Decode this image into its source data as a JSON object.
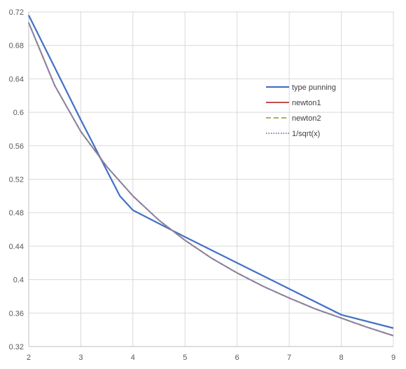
{
  "chart_data": {
    "type": "line",
    "title": "",
    "xlabel": "",
    "ylabel": "",
    "xlim": [
      2,
      9
    ],
    "ylim": [
      0.32,
      0.72
    ],
    "x_ticks": [
      2,
      3,
      4,
      5,
      6,
      7,
      8,
      9
    ],
    "y_ticks": [
      0.32,
      0.36,
      0.4,
      0.44,
      0.48,
      0.52,
      0.56,
      0.6,
      0.64,
      0.68,
      0.72
    ],
    "y_tick_labels": [
      "0.32",
      "0.36",
      "0.4",
      "0.44",
      "0.48",
      "0.52",
      "0.56",
      "0.6",
      "0.64",
      "0.68",
      "0.72"
    ],
    "grid": true,
    "legend_position": "right",
    "series": [
      {
        "name": "type punning",
        "color": "#4472C4",
        "style": "solid",
        "x": [
          2,
          3,
          3.75,
          4,
          5,
          6,
          7,
          8,
          9
        ],
        "y": [
          0.716,
          0.591,
          0.5,
          0.483,
          0.451,
          0.42,
          0.389,
          0.358,
          0.342
        ]
      },
      {
        "name": "newton1",
        "color": "#C0504D",
        "style": "solid",
        "x": [
          2,
          2.5,
          3,
          3.5,
          4,
          4.5,
          5,
          5.5,
          6,
          6.5,
          7,
          7.5,
          8,
          8.5,
          9
        ],
        "y": [
          0.707,
          0.632,
          0.577,
          0.535,
          0.5,
          0.471,
          0.447,
          0.426,
          0.408,
          0.392,
          0.378,
          0.365,
          0.354,
          0.343,
          0.333
        ]
      },
      {
        "name": "newton2",
        "color": "#9BBB59",
        "style": "dashed",
        "x": [
          2,
          2.5,
          3,
          3.5,
          4,
          4.5,
          5,
          5.5,
          6,
          6.5,
          7,
          7.5,
          8,
          8.5,
          9
        ],
        "y": [
          0.707,
          0.632,
          0.577,
          0.535,
          0.5,
          0.471,
          0.447,
          0.426,
          0.408,
          0.392,
          0.378,
          0.365,
          0.354,
          0.343,
          0.333
        ]
      },
      {
        "name": "1/sqrt(x)",
        "color": "#7F7FBF",
        "style": "dotted",
        "x": [
          2,
          2.5,
          3,
          3.5,
          4,
          4.5,
          5,
          5.5,
          6,
          6.5,
          7,
          7.5,
          8,
          8.5,
          9
        ],
        "y": [
          0.707,
          0.632,
          0.577,
          0.535,
          0.5,
          0.471,
          0.447,
          0.426,
          0.408,
          0.392,
          0.378,
          0.365,
          0.354,
          0.343,
          0.333
        ]
      }
    ]
  }
}
